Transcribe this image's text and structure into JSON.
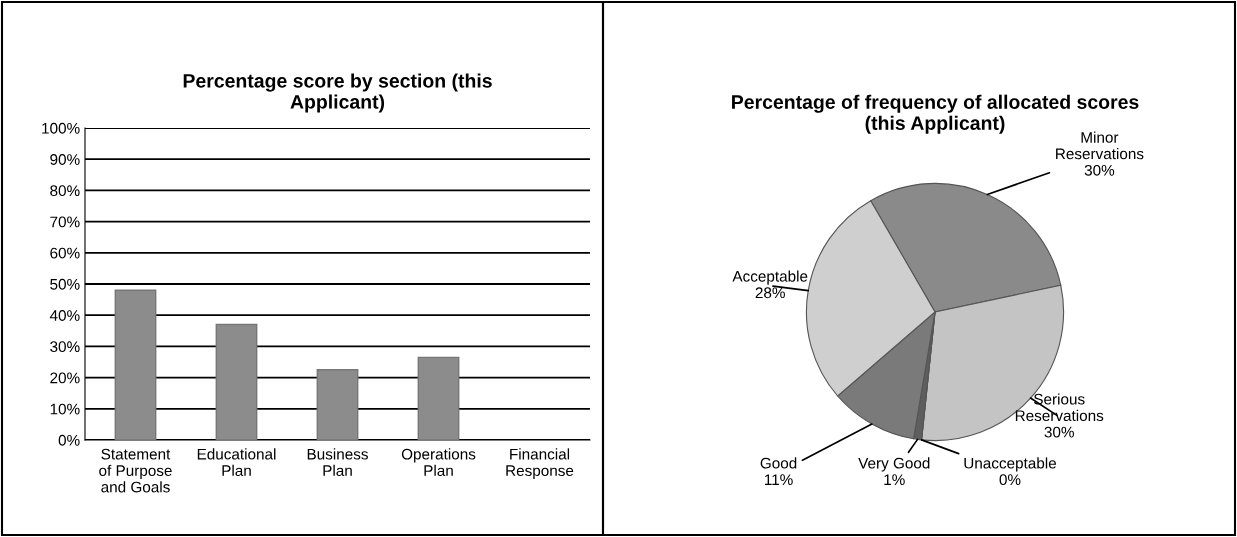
{
  "chart_data": [
    {
      "type": "bar",
      "title": "Percentage score by section (this\nApplicant)",
      "categories": [
        "Statement\nof Purpose\nand Goals",
        "Educational\nPlan",
        "Business\nPlan",
        "Operations\nPlan",
        "Financial\nResponse"
      ],
      "values": [
        48,
        37,
        22.5,
        26.5,
        null
      ],
      "color": "#8c8c8c",
      "ylim": [
        0,
        100
      ],
      "yticks": [
        {
          "value": 0,
          "label": "0%"
        },
        {
          "value": 10,
          "label": "10%"
        },
        {
          "value": 20,
          "label": "20%"
        },
        {
          "value": 30,
          "label": "30%"
        },
        {
          "value": 40,
          "label": "40%"
        },
        {
          "value": 50,
          "label": "50%"
        },
        {
          "value": 60,
          "label": "60%"
        },
        {
          "value": 70,
          "label": "70%"
        },
        {
          "value": 80,
          "label": "80%"
        },
        {
          "value": 90,
          "label": "90%"
        },
        {
          "value": 100,
          "label": "100%"
        }
      ],
      "grid": "y"
    },
    {
      "type": "pie",
      "title": "Percentage of frequency of allocated scores\n(this Applicant)",
      "categories": [
        "Minor\nReservations",
        "Serious\nReservations",
        "Unacceptable",
        "Very Good",
        "Good",
        "Acceptable"
      ],
      "values": [
        30,
        30,
        0,
        1,
        11,
        28
      ],
      "colors": [
        "#8a8a8a",
        "#c4c4c4",
        "#808080",
        "#5e5e5e",
        "#7a7a7a",
        "#cfcfcf"
      ],
      "value_labels": [
        "30%",
        "30%",
        "0%",
        "1%",
        "11%",
        "28%"
      ]
    }
  ]
}
